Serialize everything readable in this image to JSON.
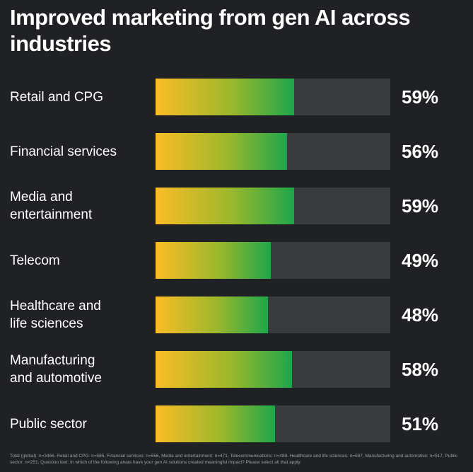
{
  "chart_data": {
    "type": "bar",
    "orientation": "horizontal",
    "title": "Improved marketing from gen AI across industries",
    "categories": [
      "Retail and CPG",
      "Financial services",
      "Media and entertainment",
      "Telecom",
      "Healthcare and life sciences",
      "Manufacturing and automotive",
      "Public sector"
    ],
    "category_lines": [
      [
        "Retail and CPG"
      ],
      [
        "Financial services"
      ],
      [
        "Media and",
        "entertainment"
      ],
      [
        "Telecom"
      ],
      [
        "Healthcare and",
        "life sciences"
      ],
      [
        "Manufacturing",
        "and automotive"
      ],
      [
        "Public sector"
      ]
    ],
    "values": [
      59,
      56,
      59,
      49,
      48,
      58,
      51
    ],
    "value_labels": [
      "59%",
      "56%",
      "59%",
      "49%",
      "48%",
      "58%",
      "51%"
    ],
    "xlim": [
      0,
      100
    ],
    "grid": false,
    "colors": {
      "gradient_start": "#fbbc26",
      "gradient_mid": "#9bb82b",
      "gradient_end": "#1ea64b",
      "track": "#3a3b3d",
      "background": "#202124"
    }
  },
  "footnote": "Total (global): n=3466. Retail and CPG: n=585, Financial services: n=556, Media and entertainment: n=471, Telecommunications: n=489, Healthcare and life sciences: n=597, Manufacturing and automotive: n=517, Public sector: n=251; Question text: In which of the following areas have your gen AI solutions created meaningful impact? Please select all that apply."
}
